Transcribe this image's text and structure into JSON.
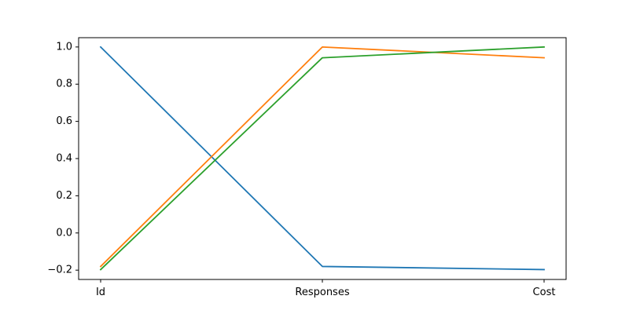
{
  "chart_data": {
    "type": "line",
    "title": "",
    "xlabel": "",
    "ylabel": "",
    "categories": [
      "Id",
      "Responses",
      "Cost"
    ],
    "ylim": [
      -0.25,
      1.05
    ],
    "yticks": [
      -0.2,
      0.0,
      0.2,
      0.4,
      0.6,
      0.8,
      1.0
    ],
    "ytick_labels": [
      "−0.2",
      "0.0",
      "0.2",
      "0.4",
      "0.6",
      "0.8",
      "1.0"
    ],
    "grid": false,
    "legend": "none",
    "series": [
      {
        "color": "#1f77b4",
        "values": [
          1.0,
          -0.18,
          -0.197
        ]
      },
      {
        "color": "#ff7f0e",
        "values": [
          -0.18,
          1.0,
          0.942
        ]
      },
      {
        "color": "#2ca02c",
        "values": [
          -0.197,
          0.942,
          1.0
        ]
      }
    ]
  }
}
